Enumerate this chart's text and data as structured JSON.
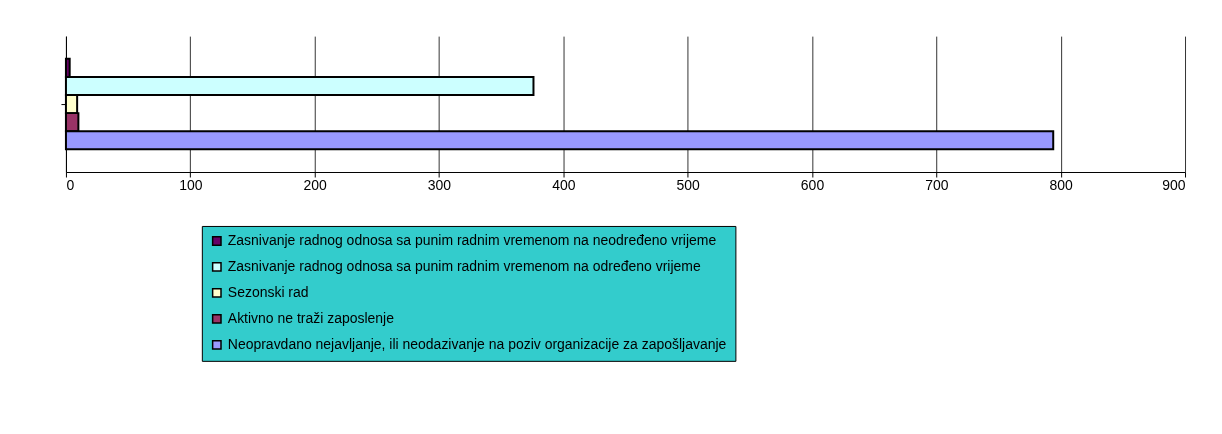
{
  "chart_data": {
    "type": "bar",
    "orientation": "horizontal",
    "categories": [
      null
    ],
    "series": [
      {
        "name": "Zasnivanje radnog odnosa sa punim radnim vremenom na neodređeno vrijeme",
        "color": "#660066",
        "values": [
          3
        ]
      },
      {
        "name": "Zasnivanje radnog odnosa sa punim radnim vremenom na određeno vrijeme",
        "color": "#ccffff",
        "values": [
          376
        ]
      },
      {
        "name": "Sezonski rad",
        "color": "#ffffcc",
        "values": [
          9
        ]
      },
      {
        "name": "Aktivno ne traži zaposlenje",
        "color": "#993366",
        "values": [
          10
        ]
      },
      {
        "name": "Neopravdano nejavljanje, ili neodazivanje na poziv organizacije za zapošljavanje",
        "color": "#9999ff",
        "values": [
          794
        ]
      }
    ],
    "xlim": [
      0,
      900
    ],
    "xticks": [
      0,
      100,
      200,
      300,
      400,
      500,
      600,
      700,
      800,
      900
    ],
    "grid": "x",
    "legend": "bottom"
  }
}
